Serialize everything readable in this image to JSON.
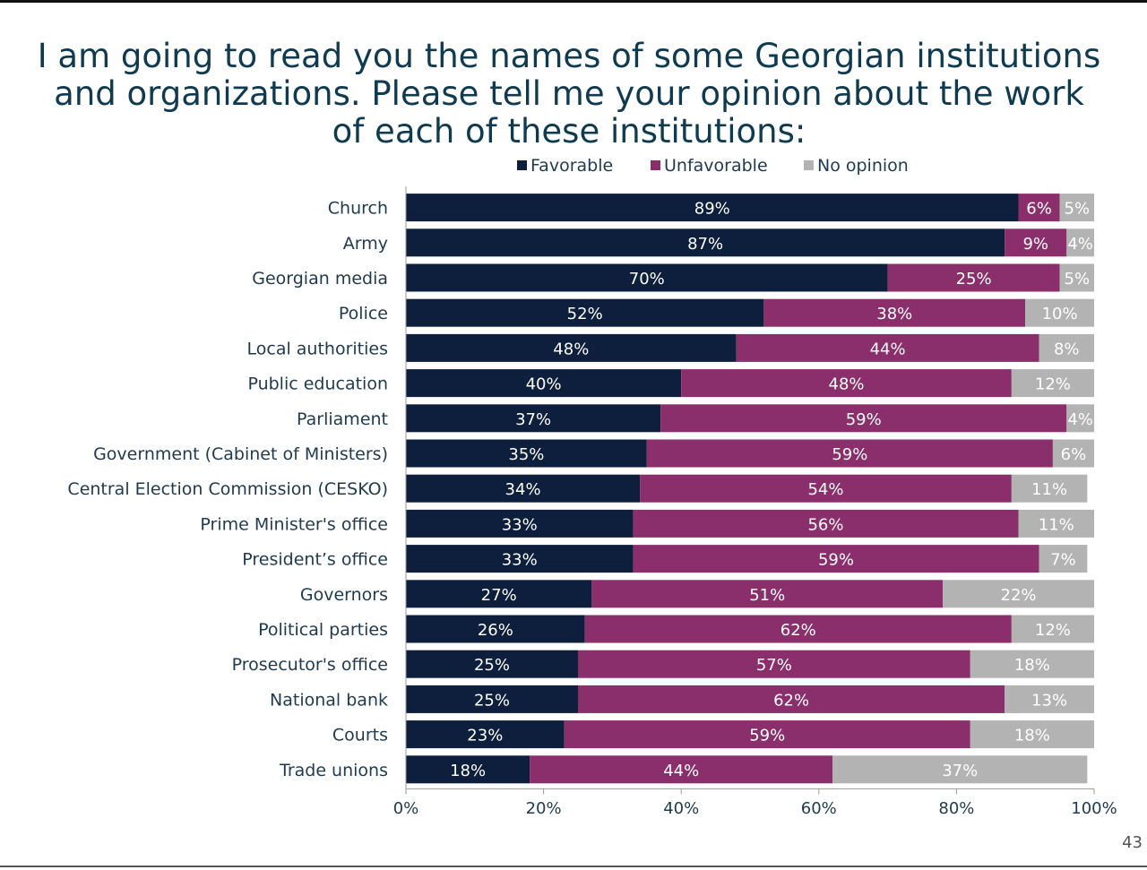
{
  "title": "I am going to read you the names of some Georgian institutions and organizations. Please tell me your opinion about the work of each of these institutions:",
  "page_number": "43",
  "colors": {
    "favorable": "#0d1f3c",
    "unfavorable": "#8a2f6c",
    "no_opinion": "#b3b3b3",
    "title": "#0f3a4f"
  },
  "legend": [
    {
      "label": "Favorable",
      "color": "#0d1f3c"
    },
    {
      "label": "Unfavorable",
      "color": "#8a2f6c"
    },
    {
      "label": "No opinion",
      "color": "#b3b3b3"
    }
  ],
  "chart_data": {
    "type": "bar",
    "orientation": "horizontal",
    "stacked": true,
    "title": "I am going to read you the names of some Georgian institutions and organizations. Please tell me your opinion about the work of each of these institutions:",
    "xlabel": "",
    "ylabel": "",
    "xlim": [
      0,
      100
    ],
    "x_ticks": [
      "0%",
      "20%",
      "40%",
      "60%",
      "80%",
      "100%"
    ],
    "legend_position": "top",
    "grid": false,
    "categories": [
      "Church",
      "Army",
      "Georgian media",
      "Police",
      "Local authorities",
      "Public education",
      "Parliament",
      "Government (Cabinet of Ministers)",
      "Central Election Commission (CESKO)",
      "Prime Minister's office",
      "President’s office",
      "Governors",
      "Political parties",
      "Prosecutor's office",
      "National bank",
      "Courts",
      "Trade unions"
    ],
    "series": [
      {
        "name": "Favorable",
        "values": [
          89,
          87,
          70,
          52,
          48,
          40,
          37,
          35,
          34,
          33,
          33,
          27,
          26,
          25,
          25,
          23,
          18
        ]
      },
      {
        "name": "Unfavorable",
        "values": [
          6,
          9,
          25,
          38,
          44,
          48,
          59,
          59,
          54,
          56,
          59,
          51,
          62,
          57,
          62,
          59,
          44
        ]
      },
      {
        "name": "No opinion",
        "values": [
          5,
          4,
          5,
          10,
          8,
          12,
          4,
          6,
          11,
          11,
          7,
          22,
          12,
          18,
          13,
          18,
          37
        ]
      }
    ]
  }
}
